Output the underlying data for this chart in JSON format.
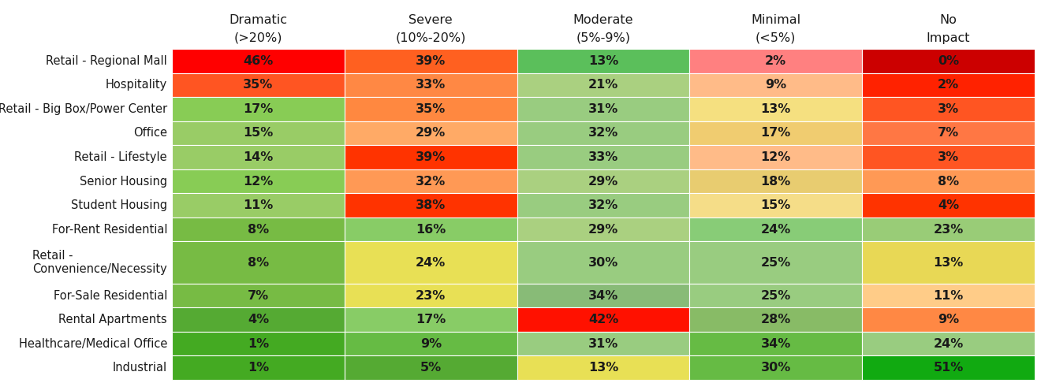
{
  "rows": [
    "Retail - Regional Mall",
    "Hospitality",
    "Retail - Big Box/Power Center",
    "Office",
    "Retail - Lifestyle",
    "Senior Housing",
    "Student Housing",
    "For-Rent Residential",
    "Retail -\nConvenience/Necessity",
    "For-Sale Residential",
    "Rental Apartments",
    "Healthcare/Medical Office",
    "Industrial"
  ],
  "col_headers_line1": [
    "Dramatic",
    "Severe",
    "Moderate",
    "Minimal",
    "No"
  ],
  "col_headers_line2": [
    "(>20%)",
    "(10%-20%)",
    "(5%-9%)",
    "(<5%)",
    "Impact"
  ],
  "values": [
    [
      46,
      39,
      13,
      2,
      0
    ],
    [
      35,
      33,
      21,
      9,
      2
    ],
    [
      17,
      35,
      31,
      13,
      3
    ],
    [
      15,
      29,
      32,
      17,
      7
    ],
    [
      14,
      39,
      33,
      12,
      3
    ],
    [
      12,
      32,
      29,
      18,
      8
    ],
    [
      11,
      38,
      32,
      15,
      4
    ],
    [
      8,
      16,
      29,
      24,
      23
    ],
    [
      8,
      24,
      30,
      25,
      13
    ],
    [
      7,
      23,
      34,
      25,
      11
    ],
    [
      4,
      17,
      42,
      28,
      9
    ],
    [
      1,
      9,
      31,
      34,
      24
    ],
    [
      1,
      5,
      13,
      30,
      51
    ]
  ],
  "cell_colors": [
    [
      "#ff0000",
      "#ff6020",
      "#5bbf5b",
      "#ff8080",
      "#cc0000"
    ],
    [
      "#ff5522",
      "#ff8844",
      "#aad080",
      "#ffbb88",
      "#ff2200"
    ],
    [
      "#88cc55",
      "#ff8840",
      "#99cc80",
      "#f5e080",
      "#ff5522"
    ],
    [
      "#99cc66",
      "#ffaa66",
      "#99cc80",
      "#f0cc70",
      "#ff7744"
    ],
    [
      "#99cc66",
      "#ff3300",
      "#99cc80",
      "#ffbb88",
      "#ff5522"
    ],
    [
      "#88cc55",
      "#ff9955",
      "#aad080",
      "#e8cc70",
      "#ff9955"
    ],
    [
      "#99cc66",
      "#ff3300",
      "#99cc80",
      "#f5dd88",
      "#ff3300"
    ],
    [
      "#77bb44",
      "#88cc66",
      "#aad080",
      "#88cc77",
      "#99cc77"
    ],
    [
      "#77bb44",
      "#e8e055",
      "#99cc80",
      "#99cc80",
      "#e8d855"
    ],
    [
      "#77bb44",
      "#e8e055",
      "#88bb77",
      "#99cc80",
      "#ffcc88"
    ],
    [
      "#55aa33",
      "#88cc66",
      "#ff1100",
      "#88bb66",
      "#ff8844"
    ],
    [
      "#44aa22",
      "#66bb44",
      "#99cc80",
      "#66bb44",
      "#99cc80"
    ],
    [
      "#44aa22",
      "#55aa33",
      "#e8e055",
      "#66bb44",
      "#11aa11"
    ]
  ],
  "background_color": "#ffffff",
  "text_color": "#1a1a1a",
  "header_fontsize": 11.5,
  "cell_fontsize": 11.5,
  "row_label_fontsize": 10.5,
  "figsize": [
    13.2,
    4.86
  ],
  "dpi": 100
}
